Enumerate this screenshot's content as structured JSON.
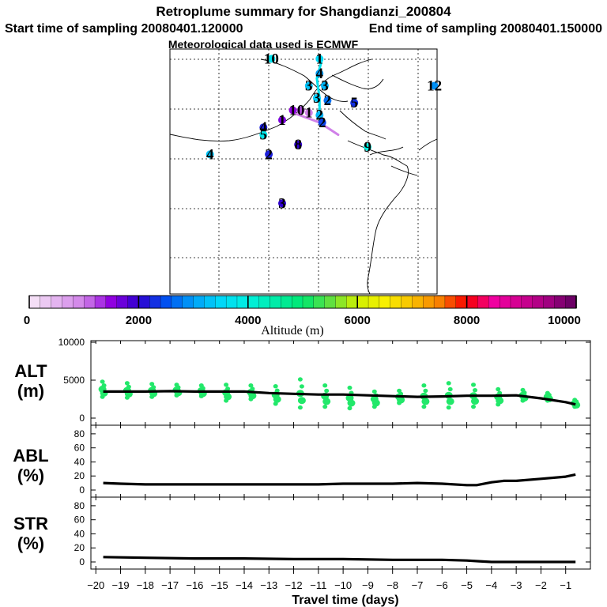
{
  "chart_data": {
    "type": "line",
    "title": "Retroplume summary for Shangdianzi_200804",
    "start_label": "Start time of sampling 20080401.120000",
    "end_label": "End time of sampling 20080401.150000",
    "met_label": "Meteorological data used is ECMWF",
    "colorbar": {
      "label": "Altitude (m)",
      "ticks": [
        "0",
        "2000",
        "4000",
        "6000",
        "8000",
        "10000"
      ],
      "range": [
        0,
        10000
      ]
    },
    "map_markers": [
      {
        "label": "10",
        "lon": 0.38,
        "lat": 0.96,
        "alt": 3700
      },
      {
        "label": "1",
        "lon": 0.56,
        "lat": 0.96,
        "alt": 3500
      },
      {
        "label": "4",
        "lon": 0.56,
        "lat": 0.9,
        "alt": 3000
      },
      {
        "label": "3",
        "lon": 0.52,
        "lat": 0.85,
        "alt": 3300
      },
      {
        "label": "3",
        "lon": 0.58,
        "lat": 0.85,
        "alt": 3200
      },
      {
        "label": "12",
        "lon": 0.99,
        "lat": 0.85,
        "alt": 2900
      },
      {
        "label": "3",
        "lon": 0.55,
        "lat": 0.8,
        "alt": 3400
      },
      {
        "label": "2",
        "lon": 0.59,
        "lat": 0.79,
        "alt": 2700
      },
      {
        "label": "5",
        "lon": 0.69,
        "lat": 0.78,
        "alt": 2300
      },
      {
        "label": "1",
        "lon": 0.46,
        "lat": 0.75,
        "alt": 1500
      },
      {
        "label": "0",
        "lon": 0.49,
        "lat": 0.75,
        "alt": 1200
      },
      {
        "label": "1",
        "lon": 0.52,
        "lat": 0.74,
        "alt": 1000
      },
      {
        "label": "2",
        "lon": 0.56,
        "lat": 0.73,
        "alt": 3200
      },
      {
        "label": "2",
        "lon": 0.57,
        "lat": 0.7,
        "alt": 2400
      },
      {
        "label": "1",
        "lon": 0.42,
        "lat": 0.71,
        "alt": 1600
      },
      {
        "label": "4",
        "lon": 0.35,
        "lat": 0.68,
        "alt": 2200
      },
      {
        "label": "5",
        "lon": 0.35,
        "lat": 0.65,
        "alt": 3800
      },
      {
        "label": "8",
        "lon": 0.48,
        "lat": 0.61,
        "alt": 2000
      },
      {
        "label": "9",
        "lon": 0.74,
        "lat": 0.6,
        "alt": 4000
      },
      {
        "label": "4",
        "lon": 0.15,
        "lat": 0.57,
        "alt": 3300
      },
      {
        "label": "2",
        "lon": 0.37,
        "lat": 0.57,
        "alt": 2200
      },
      {
        "label": "3",
        "lon": 0.42,
        "lat": 0.37,
        "alt": 2000
      }
    ],
    "map_paths": [
      {
        "name": "purple",
        "alt": 1000,
        "points": [
          [
            0.46,
            0.74
          ],
          [
            0.56,
            0.7
          ],
          [
            0.63,
            0.65
          ]
        ]
      },
      {
        "name": "cyan",
        "alt": 3700,
        "points": [
          [
            0.56,
            0.72
          ],
          [
            0.56,
            0.8
          ],
          [
            0.55,
            0.88
          ],
          [
            0.57,
            0.96
          ]
        ]
      }
    ],
    "x": [
      -20,
      -19,
      -18,
      -17,
      -16,
      -15,
      -14,
      -13,
      -12,
      -11,
      -10,
      -9,
      -8,
      -7,
      -6,
      -5,
      -4,
      -3,
      -2,
      -1
    ],
    "xlabel": "Travel time (days)",
    "xlim": [
      -20.2,
      0
    ],
    "panels": [
      {
        "id": "alt",
        "label_line1": "ALT",
        "label_line2": "(m)",
        "ylim": [
          0,
          10000
        ],
        "yticks": [
          "0",
          "5000",
          "10000"
        ],
        "ytick_values": [
          0,
          5000,
          10000
        ],
        "line": [
          [
            -19.7,
            3500
          ],
          [
            -19,
            3500
          ],
          [
            -18,
            3500
          ],
          [
            -17,
            3550
          ],
          [
            -16,
            3500
          ],
          [
            -15,
            3500
          ],
          [
            -14,
            3500
          ],
          [
            -13,
            3300
          ],
          [
            -12,
            3200
          ],
          [
            -11,
            3100
          ],
          [
            -10,
            3100
          ],
          [
            -9,
            3000
          ],
          [
            -8,
            2900
          ],
          [
            -7,
            2800
          ],
          [
            -6,
            2850
          ],
          [
            -5,
            2950
          ],
          [
            -4,
            2950
          ],
          [
            -3,
            3000
          ],
          [
            -2,
            2600
          ],
          [
            -1,
            2100
          ],
          [
            -0.6,
            1800
          ]
        ],
        "spread": [
          [
            -19.7,
            2800,
            4800
          ],
          [
            -18.7,
            2700,
            4600
          ],
          [
            -17.7,
            2800,
            4500
          ],
          [
            -16.7,
            3000,
            4400
          ],
          [
            -15.7,
            2900,
            4300
          ],
          [
            -14.7,
            2300,
            4400
          ],
          [
            -13.7,
            2500,
            4300
          ],
          [
            -12.7,
            1900,
            4200
          ],
          [
            -11.7,
            1400,
            5100
          ],
          [
            -10.7,
            1500,
            4300
          ],
          [
            -9.7,
            1300,
            4000
          ],
          [
            -8.7,
            1500,
            3500
          ],
          [
            -7.7,
            2000,
            3600
          ],
          [
            -6.7,
            1500,
            4300
          ],
          [
            -5.7,
            1400,
            4600
          ],
          [
            -4.7,
            1500,
            4400
          ],
          [
            -3.7,
            1800,
            3800
          ],
          [
            -2.7,
            2300,
            3700
          ],
          [
            -1.7,
            2300,
            3300
          ],
          [
            -0.6,
            1500,
            2400
          ]
        ]
      },
      {
        "id": "abl",
        "label_line1": "ABL",
        "label_line2": "(%)",
        "ylim": [
          0,
          90
        ],
        "yticks": [
          "0",
          "20",
          "40",
          "60",
          "80"
        ],
        "ytick_values": [
          0,
          20,
          40,
          60,
          80
        ],
        "line": [
          [
            -19.7,
            10
          ],
          [
            -19,
            9
          ],
          [
            -18,
            8
          ],
          [
            -17,
            8
          ],
          [
            -16,
            8
          ],
          [
            -15,
            8
          ],
          [
            -14,
            8
          ],
          [
            -13,
            8
          ],
          [
            -12,
            8
          ],
          [
            -11,
            8
          ],
          [
            -10,
            9
          ],
          [
            -9,
            9
          ],
          [
            -8,
            9
          ],
          [
            -7,
            10
          ],
          [
            -6,
            9
          ],
          [
            -5,
            7
          ],
          [
            -4.6,
            7
          ],
          [
            -4,
            11
          ],
          [
            -3.5,
            13
          ],
          [
            -3,
            13
          ],
          [
            -2,
            16
          ],
          [
            -1,
            19
          ],
          [
            -0.6,
            22
          ]
        ]
      },
      {
        "id": "str",
        "label_line1": "STR",
        "label_line2": "(%)",
        "ylim": [
          0,
          90
        ],
        "yticks": [
          "0",
          "20",
          "40",
          "60",
          "80"
        ],
        "ytick_values": [
          0,
          20,
          40,
          60,
          80
        ],
        "line": [
          [
            -19.7,
            7
          ],
          [
            -18,
            6
          ],
          [
            -16,
            5
          ],
          [
            -14,
            5
          ],
          [
            -12,
            4
          ],
          [
            -10,
            4
          ],
          [
            -8,
            3
          ],
          [
            -6,
            3
          ],
          [
            -5,
            2
          ],
          [
            -4.5,
            1
          ],
          [
            -4,
            0
          ],
          [
            -0.6,
            0
          ]
        ]
      }
    ]
  }
}
